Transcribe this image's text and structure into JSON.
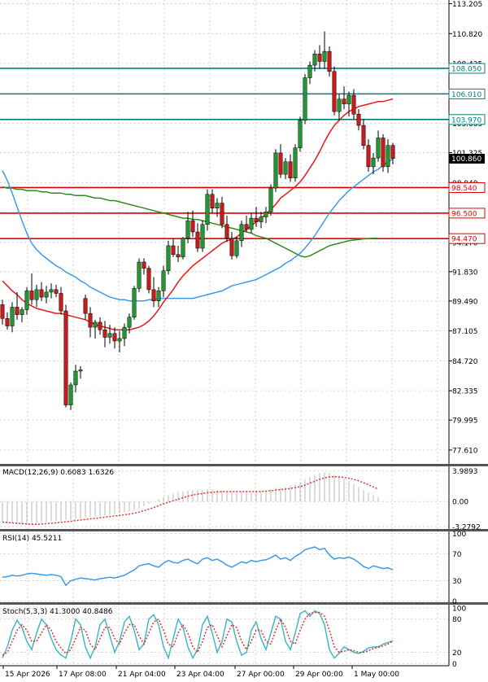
{
  "chart_data": {
    "type": "candlestick",
    "main": {
      "ylim": [
        76.5,
        113.5
      ],
      "price_ticks": [
        "113.205",
        "110.820",
        "108.435",
        "106.050",
        "103.665",
        "101.325",
        "98.940",
        "96.555",
        "94.170",
        "91.830",
        "89.490",
        "87.105",
        "84.720",
        "82.335",
        "79.995",
        "77.610"
      ],
      "current_price": "100.860",
      "levels": [
        {
          "label": "108.050",
          "value": 108.05,
          "color": "#008080"
        },
        {
          "label": "106.010",
          "value": 106.01,
          "color": "#008080"
        },
        {
          "label": "103.970",
          "value": 103.97,
          "color": "#008080"
        },
        {
          "label": "98.540",
          "value": 98.54,
          "color": "#e00000"
        },
        {
          "label": "96.500",
          "value": 96.5,
          "color": "#e00000"
        },
        {
          "label": "94.470",
          "value": 94.47,
          "color": "#e00000"
        }
      ],
      "candles": [
        [
          89.2,
          89.6,
          87.6,
          88.1
        ],
        [
          88.1,
          88.6,
          87.2,
          87.5
        ],
        [
          87.5,
          89.4,
          87.0,
          89.0
        ],
        [
          89.0,
          90.2,
          88.0,
          88.4
        ],
        [
          88.4,
          89.0,
          87.8,
          88.8
        ],
        [
          88.8,
          90.6,
          88.4,
          90.3
        ],
        [
          90.3,
          91.7,
          89.2,
          89.6
        ],
        [
          89.6,
          90.8,
          89.0,
          90.4
        ],
        [
          90.4,
          91.0,
          89.5,
          89.8
        ],
        [
          89.8,
          90.7,
          89.3,
          90.2
        ],
        [
          90.2,
          90.9,
          89.7,
          90.4
        ],
        [
          90.4,
          90.8,
          89.8,
          90.1
        ],
        [
          90.1,
          90.6,
          88.4,
          88.7
        ],
        [
          88.7,
          89.2,
          81.0,
          81.2
        ],
        [
          81.2,
          83.0,
          80.8,
          82.8
        ],
        [
          82.8,
          84.4,
          82.2,
          83.9
        ],
        [
          83.9,
          84.3,
          83.3,
          84.0
        ],
        [
          89.7,
          90.0,
          88.0,
          88.5
        ],
        [
          88.5,
          89.0,
          86.6,
          87.4
        ],
        [
          87.4,
          88.0,
          86.5,
          87.8
        ],
        [
          87.8,
          88.2,
          86.8,
          87.2
        ],
        [
          87.2,
          87.9,
          85.8,
          86.6
        ],
        [
          86.6,
          87.6,
          86.1,
          86.9
        ],
        [
          86.9,
          87.4,
          85.7,
          86.3
        ],
        [
          86.3,
          87.1,
          85.4,
          86.5
        ],
        [
          86.5,
          87.7,
          85.9,
          87.4
        ],
        [
          87.4,
          88.5,
          86.9,
          88.2
        ],
        [
          88.2,
          90.7,
          88.0,
          90.5
        ],
        [
          90.5,
          92.9,
          90.2,
          92.6
        ],
        [
          92.6,
          92.9,
          91.6,
          92.1
        ],
        [
          92.1,
          92.3,
          90.1,
          90.4
        ],
        [
          90.4,
          91.4,
          89.0,
          89.5
        ],
        [
          89.5,
          90.6,
          89.0,
          90.3
        ],
        [
          90.3,
          92.3,
          89.8,
          91.9
        ],
        [
          91.9,
          94.3,
          91.6,
          93.9
        ],
        [
          93.9,
          94.5,
          93.0,
          93.2
        ],
        [
          93.2,
          93.9,
          92.6,
          93.0
        ],
        [
          93.0,
          94.6,
          92.8,
          94.5
        ],
        [
          94.5,
          96.6,
          94.1,
          95.9
        ],
        [
          95.9,
          96.7,
          94.6,
          95.0
        ],
        [
          95.0,
          95.7,
          93.4,
          93.7
        ],
        [
          93.7,
          95.9,
          93.4,
          95.6
        ],
        [
          95.6,
          98.4,
          95.1,
          98.0
        ],
        [
          98.0,
          98.4,
          96.5,
          96.9
        ],
        [
          96.9,
          97.7,
          96.2,
          97.3
        ],
        [
          97.3,
          97.8,
          95.3,
          95.6
        ],
        [
          95.6,
          96.3,
          94.2,
          94.5
        ],
        [
          94.5,
          95.0,
          92.8,
          93.1
        ],
        [
          93.1,
          94.6,
          92.9,
          94.3
        ],
        [
          94.3,
          95.9,
          93.8,
          95.6
        ],
        [
          95.6,
          96.3,
          95.0,
          95.2
        ],
        [
          95.2,
          96.5,
          94.9,
          96.1
        ],
        [
          96.1,
          97.0,
          95.4,
          95.8
        ],
        [
          95.8,
          96.6,
          95.3,
          96.2
        ],
        [
          96.2,
          97.0,
          95.7,
          96.6
        ],
        [
          96.6,
          98.8,
          96.3,
          98.5
        ],
        [
          98.5,
          101.6,
          98.2,
          101.3
        ],
        [
          101.3,
          102.0,
          99.3,
          99.6
        ],
        [
          99.6,
          100.9,
          99.2,
          100.6
        ],
        [
          100.6,
          101.2,
          99.0,
          99.3
        ],
        [
          99.3,
          102.0,
          99.0,
          101.7
        ],
        [
          101.7,
          104.2,
          101.4,
          103.9
        ],
        [
          103.9,
          107.6,
          103.6,
          107.3
        ],
        [
          107.3,
          108.6,
          106.8,
          108.3
        ],
        [
          108.3,
          109.5,
          107.8,
          109.2
        ],
        [
          109.2,
          109.9,
          108.0,
          108.6
        ],
        [
          108.6,
          111.0,
          108.0,
          109.4
        ],
        [
          109.4,
          109.8,
          107.4,
          107.8
        ],
        [
          107.8,
          108.2,
          104.3,
          104.6
        ],
        [
          104.6,
          106.0,
          103.9,
          105.6
        ],
        [
          105.6,
          106.6,
          104.8,
          105.2
        ],
        [
          105.2,
          106.2,
          104.2,
          105.9
        ],
        [
          105.9,
          106.4,
          104.0,
          104.4
        ],
        [
          104.4,
          104.8,
          103.1,
          103.5
        ],
        [
          103.5,
          104.0,
          101.6,
          101.9
        ],
        [
          101.9,
          102.4,
          99.8,
          100.2
        ],
        [
          100.2,
          101.3,
          99.6,
          100.9
        ],
        [
          100.9,
          103.1,
          100.6,
          102.5
        ],
        [
          102.5,
          102.8,
          99.8,
          100.2
        ],
        [
          100.2,
          102.4,
          99.7,
          101.9
        ],
        [
          101.9,
          102.1,
          100.4,
          100.86
        ]
      ],
      "ma_red": [
        91.1,
        90.7,
        90.3,
        90.0,
        89.6,
        89.3,
        89.1,
        88.9,
        88.8,
        88.7,
        88.6,
        88.5,
        88.5,
        88.4,
        88.3,
        88.2,
        88.1,
        88.0,
        87.8,
        87.6,
        87.5,
        87.4,
        87.3,
        87.2,
        87.2,
        87.2,
        87.2,
        87.3,
        87.4,
        87.6,
        87.9,
        88.3,
        88.8,
        89.4,
        89.9,
        90.4,
        91.0,
        91.5,
        91.9,
        92.3,
        92.6,
        92.9,
        93.2,
        93.5,
        93.8,
        94.1,
        94.3,
        94.4,
        94.6,
        94.9,
        95.2,
        95.5,
        95.8,
        96.1,
        96.4,
        96.8,
        97.2,
        97.7,
        98.0,
        98.3,
        98.6,
        99.0,
        99.5,
        100.1,
        100.7,
        101.4,
        102.2,
        102.9,
        103.5,
        103.9,
        104.3,
        104.6,
        104.8,
        105.0,
        105.1,
        105.2,
        105.3,
        105.4,
        105.4,
        105.5,
        105.6
      ],
      "ma_blue": [
        99.9,
        99.1,
        98.1,
        97.0,
        95.9,
        94.9,
        94.1,
        93.6,
        93.2,
        92.9,
        92.6,
        92.3,
        92.1,
        91.8,
        91.6,
        91.4,
        91.1,
        90.9,
        90.6,
        90.4,
        90.2,
        90.0,
        89.8,
        89.7,
        89.6,
        89.6,
        89.5,
        89.5,
        89.5,
        89.5,
        89.6,
        89.6,
        89.7,
        89.7,
        89.7,
        89.7,
        89.7,
        89.7,
        89.7,
        89.7,
        89.8,
        89.9,
        90.0,
        90.1,
        90.2,
        90.3,
        90.5,
        90.7,
        90.8,
        90.9,
        91.0,
        91.1,
        91.2,
        91.4,
        91.6,
        91.8,
        92.0,
        92.2,
        92.5,
        92.7,
        93.0,
        93.3,
        93.7,
        94.2,
        94.7,
        95.3,
        95.9,
        96.5,
        97.0,
        97.5,
        97.9,
        98.3,
        98.6,
        98.9,
        99.2,
        99.5,
        99.8,
        100.0,
        100.3,
        100.6,
        100.8
      ],
      "ma_green": [
        98.6,
        98.5,
        98.5,
        98.4,
        98.4,
        98.3,
        98.3,
        98.3,
        98.2,
        98.2,
        98.1,
        98.1,
        98.1,
        98.0,
        98.0,
        97.9,
        97.9,
        97.9,
        97.8,
        97.7,
        97.7,
        97.6,
        97.5,
        97.5,
        97.4,
        97.3,
        97.2,
        97.1,
        97.0,
        96.9,
        96.8,
        96.7,
        96.6,
        96.5,
        96.4,
        96.3,
        96.2,
        96.1,
        96.1,
        96.0,
        96.0,
        95.9,
        95.8,
        95.7,
        95.6,
        95.5,
        95.4,
        95.3,
        95.2,
        95.1,
        95.0,
        94.9,
        94.7,
        94.6,
        94.5,
        94.3,
        94.1,
        93.9,
        93.7,
        93.5,
        93.3,
        93.1,
        93.0,
        93.1,
        93.3,
        93.5,
        93.7,
        93.9,
        94.0,
        94.1,
        94.2,
        94.3,
        94.35,
        94.4,
        94.45,
        94.47,
        94.5,
        94.5
      ]
    },
    "macd": {
      "label": "MACD(12,26,9) 0.6083 1.6326",
      "ylim": [
        -3.6,
        4.6
      ],
      "ticks": [
        "3.9893",
        "0.00",
        "-3.2792"
      ],
      "hist": [
        -2.6,
        -2.7,
        -2.8,
        -2.9,
        -3.0,
        -3.0,
        -3.0,
        -2.9,
        -2.8,
        -2.7,
        -2.6,
        -2.5,
        -2.5,
        -2.4,
        -2.4,
        -2.3,
        -2.2,
        -2.1,
        -2.0,
        -2.0,
        -1.9,
        -1.8,
        -1.7,
        -1.6,
        -1.5,
        -1.4,
        -1.3,
        -1.1,
        -0.9,
        -0.6,
        -0.3,
        0.0,
        0.3,
        0.6,
        0.8,
        1.0,
        1.2,
        1.3,
        1.4,
        1.5,
        1.5,
        1.5,
        1.6,
        1.6,
        1.5,
        1.4,
        1.3,
        1.3,
        1.3,
        1.3,
        1.2,
        1.2,
        1.3,
        1.3,
        1.4,
        1.6,
        1.8,
        1.8,
        1.9,
        2.0,
        2.2,
        2.5,
        2.9,
        3.2,
        3.5,
        3.7,
        3.8,
        3.7,
        3.5,
        3.3,
        3.0,
        2.7,
        2.3,
        1.9,
        1.5,
        1.1,
        0.8,
        0.6
      ],
      "signal": [
        -2.7,
        -2.75,
        -2.8,
        -2.85,
        -2.9,
        -2.95,
        -2.98,
        -2.98,
        -2.95,
        -2.9,
        -2.85,
        -2.8,
        -2.72,
        -2.65,
        -2.6,
        -2.5,
        -2.42,
        -2.35,
        -2.27,
        -2.2,
        -2.12,
        -2.05,
        -1.97,
        -1.9,
        -1.82,
        -1.75,
        -1.65,
        -1.55,
        -1.4,
        -1.2,
        -1.0,
        -0.8,
        -0.55,
        -0.3,
        -0.1,
        0.1,
        0.3,
        0.5,
        0.7,
        0.85,
        0.95,
        1.05,
        1.15,
        1.2,
        1.25,
        1.28,
        1.3,
        1.3,
        1.3,
        1.3,
        1.3,
        1.3,
        1.3,
        1.32,
        1.35,
        1.4,
        1.48,
        1.55,
        1.62,
        1.7,
        1.8,
        1.95,
        2.15,
        2.4,
        2.65,
        2.9,
        3.1,
        3.2,
        3.25,
        3.22,
        3.15,
        3.05,
        2.9,
        2.7,
        2.45,
        2.2,
        1.9,
        1.63
      ]
    },
    "rsi": {
      "label": "RSI(14) 45.5211",
      "ylim": [
        -2,
        103
      ],
      "ticks": [
        "100",
        "70",
        "30",
        "0"
      ],
      "values": [
        35,
        36,
        38,
        37,
        38,
        40,
        41,
        40,
        39,
        38,
        39,
        38,
        36,
        23,
        30,
        32,
        34,
        33,
        32,
        31,
        33,
        34,
        35,
        34,
        36,
        38,
        42,
        46,
        52,
        54,
        55,
        52,
        50,
        56,
        60,
        57,
        56,
        60,
        62,
        58,
        55,
        62,
        64,
        60,
        62,
        58,
        53,
        50,
        54,
        58,
        56,
        60,
        58,
        60,
        61,
        64,
        68,
        62,
        64,
        60,
        66,
        70,
        76,
        78,
        80,
        76,
        78,
        68,
        62,
        64,
        63,
        65,
        62,
        57,
        51,
        48,
        52,
        50,
        48,
        49,
        46
      ]
    },
    "stoch": {
      "label": "Stoch(5,3,3) 41.3000 40.8486",
      "ylim": [
        -4,
        106
      ],
      "ticks": [
        "100",
        "80",
        "20",
        "0"
      ],
      "k": [
        10,
        30,
        60,
        78,
        65,
        40,
        25,
        55,
        80,
        70,
        45,
        25,
        15,
        10,
        40,
        80,
        70,
        30,
        10,
        30,
        70,
        80,
        50,
        20,
        40,
        75,
        85,
        60,
        25,
        35,
        80,
        88,
        70,
        30,
        10,
        45,
        80,
        65,
        30,
        10,
        25,
        70,
        85,
        55,
        20,
        40,
        80,
        75,
        40,
        15,
        20,
        60,
        75,
        45,
        25,
        55,
        85,
        80,
        40,
        25,
        55,
        90,
        95,
        85,
        95,
        90,
        70,
        25,
        10,
        18,
        30,
        25,
        20,
        18,
        22,
        28,
        30,
        30,
        35,
        38,
        41
      ],
      "d": [
        15,
        20,
        40,
        60,
        70,
        60,
        40,
        40,
        55,
        70,
        60,
        40,
        28,
        18,
        25,
        45,
        65,
        60,
        35,
        25,
        45,
        65,
        65,
        45,
        35,
        55,
        70,
        70,
        50,
        35,
        55,
        75,
        80,
        60,
        35,
        30,
        55,
        70,
        55,
        30,
        20,
        40,
        65,
        70,
        50,
        30,
        50,
        70,
        65,
        40,
        25,
        40,
        60,
        60,
        40,
        35,
        60,
        80,
        65,
        40,
        35,
        60,
        80,
        90,
        92,
        92,
        85,
        60,
        30,
        20,
        22,
        25,
        23,
        20,
        20,
        23,
        27,
        29,
        32,
        35,
        40.8
      ]
    },
    "time_labels": [
      "15 Apr 2026",
      "17 Apr 08:00",
      "21 Apr 04:00",
      "23 Apr 04:00",
      "27 Apr 00:00",
      "29 Apr 00:00",
      "1 May 00:00"
    ],
    "colors": {
      "bull": "#1e9a2e",
      "bear": "#d01818",
      "ma_red": "#e81818",
      "ma_blue": "#3c9be8",
      "ma_green": "#2e8b1e",
      "macd_hist": "#b8b8b8",
      "macd_signal": "#e03030",
      "rsi": "#3c9be8",
      "stoch_k": "#40b8c8",
      "stoch_d": "#e03030",
      "current_bg": "#000000",
      "grid": "#c8c8c8"
    }
  }
}
